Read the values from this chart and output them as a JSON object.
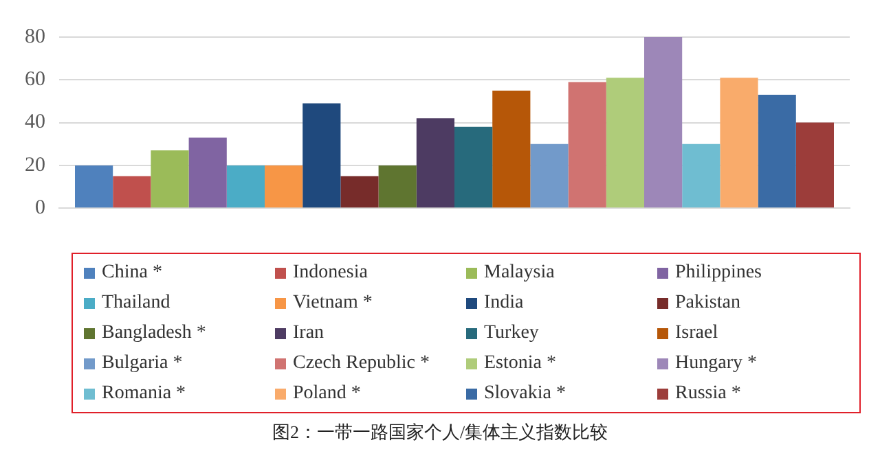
{
  "chart_data": {
    "type": "bar",
    "title": "图2：一带一路国家个人/集体主义指数比较",
    "categories": [
      null
    ],
    "ylim": [
      0,
      80
    ],
    "yticks": [
      0,
      20,
      40,
      60,
      80
    ],
    "grid": "y",
    "legend": "bottom",
    "series": [
      {
        "name": "China *",
        "color": "#4f81bd",
        "values": [
          20
        ]
      },
      {
        "name": "Indonesia",
        "color": "#c0504d",
        "values": [
          15
        ]
      },
      {
        "name": "Malaysia",
        "color": "#9bbb59",
        "values": [
          27
        ]
      },
      {
        "name": "Philippines",
        "color": "#8064a2",
        "values": [
          33
        ]
      },
      {
        "name": "Thailand",
        "color": "#4bacc6",
        "values": [
          20
        ]
      },
      {
        "name": "Vietnam *",
        "color": "#f79646",
        "values": [
          20
        ]
      },
      {
        "name": "India",
        "color": "#1f497d",
        "values": [
          49
        ]
      },
      {
        "name": "Pakistan",
        "color": "#772c2a",
        "values": [
          15
        ]
      },
      {
        "name": "Bangladesh *",
        "color": "#5f7530",
        "values": [
          20
        ]
      },
      {
        "name": "Iran",
        "color": "#4d3b62",
        "values": [
          42
        ]
      },
      {
        "name": "Turkey",
        "color": "#276a7c",
        "values": [
          38
        ]
      },
      {
        "name": "Israel",
        "color": "#b65708",
        "values": [
          55
        ]
      },
      {
        "name": "Bulgaria *",
        "color": "#729aca",
        "values": [
          30
        ]
      },
      {
        "name": "Czech Republic *",
        "color": "#d07371",
        "values": [
          59
        ]
      },
      {
        "name": "Estonia *",
        "color": "#afcc7a",
        "values": [
          61
        ]
      },
      {
        "name": "Hungary *",
        "color": "#9d87b8",
        "values": [
          80
        ]
      },
      {
        "name": "Romania *",
        "color": "#6fbdd1",
        "values": [
          30
        ]
      },
      {
        "name": "Poland *",
        "color": "#f9ab6b",
        "values": [
          61
        ]
      },
      {
        "name": "Slovakia *",
        "color": "#3a6ba5",
        "values": [
          53
        ]
      },
      {
        "name": "Russia *",
        "color": "#9c3d3a",
        "values": [
          40
        ]
      }
    ]
  }
}
